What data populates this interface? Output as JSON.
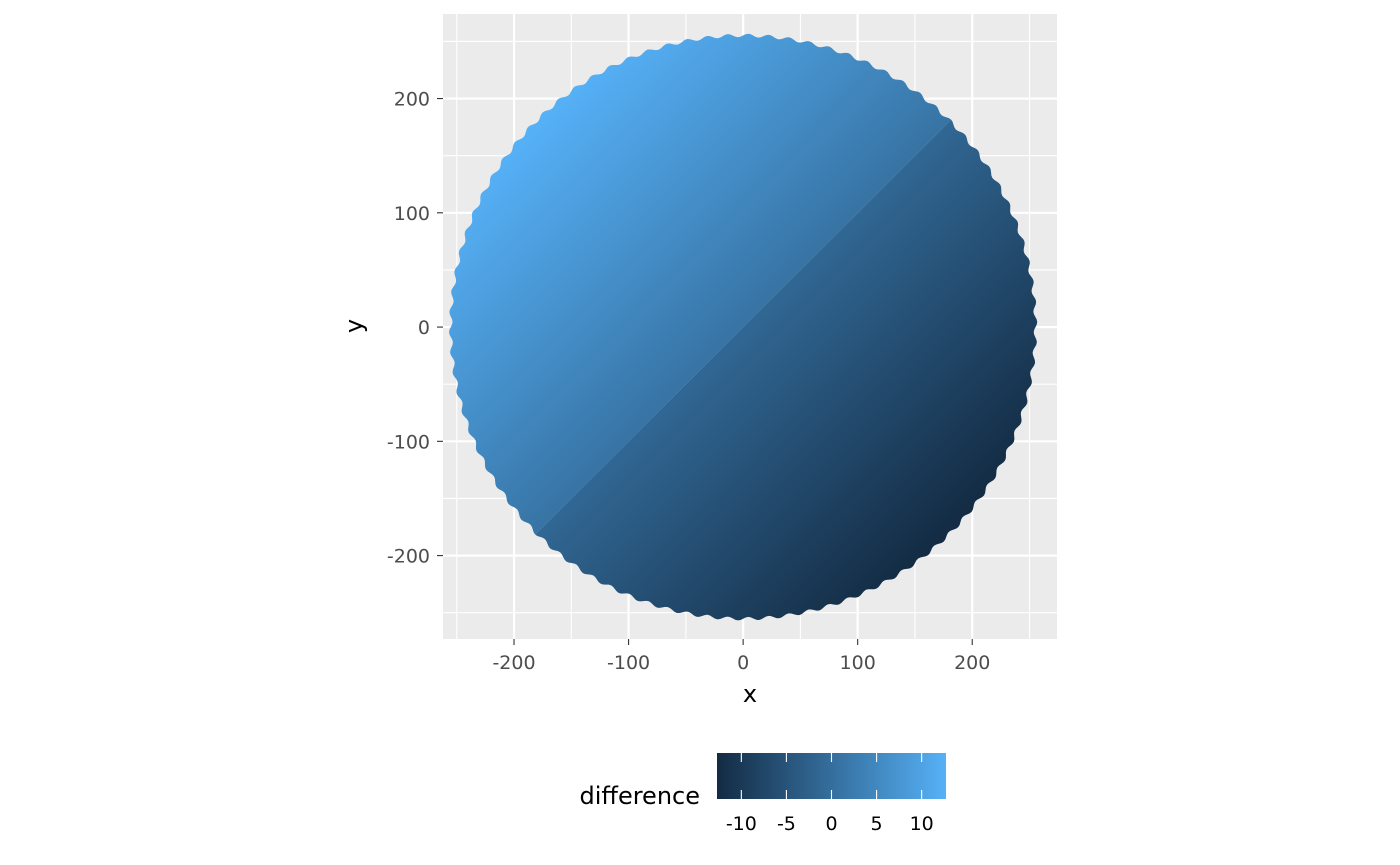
{
  "chart_data": {
    "type": "scatter",
    "title": "",
    "xlabel": "x",
    "ylabel": "y",
    "xlim": [
      -262,
      274
    ],
    "ylim": [
      -273,
      274
    ],
    "x_ticks": [
      -200,
      -100,
      0,
      100,
      200
    ],
    "y_ticks": [
      200,
      100,
      0,
      -100,
      -200
    ],
    "x_tick_labels": [
      "-200",
      "-100",
      "0",
      "100",
      "200"
    ],
    "y_tick_labels": [
      "200",
      "100",
      "0",
      "-100",
      "-200"
    ],
    "grid": true,
    "panel_background": "#EBEBEB",
    "grid_color": "#FFFFFF",
    "points": {
      "shape": "disc",
      "radius": 250,
      "center": [
        0,
        0
      ],
      "color_mapping": "difference ≈ 0.0255·(y − x), with a small offset step across the diagonal y = x"
    },
    "legend": {
      "title": "difference",
      "position": "bottom",
      "breaks": [
        -10,
        -5,
        0,
        5,
        10
      ],
      "labels": [
        "-10",
        "-5",
        "0",
        "5",
        "10"
      ],
      "range": [
        -12.7,
        12.7
      ],
      "low_color": "#132B43",
      "high_color": "#56B1F7"
    }
  }
}
